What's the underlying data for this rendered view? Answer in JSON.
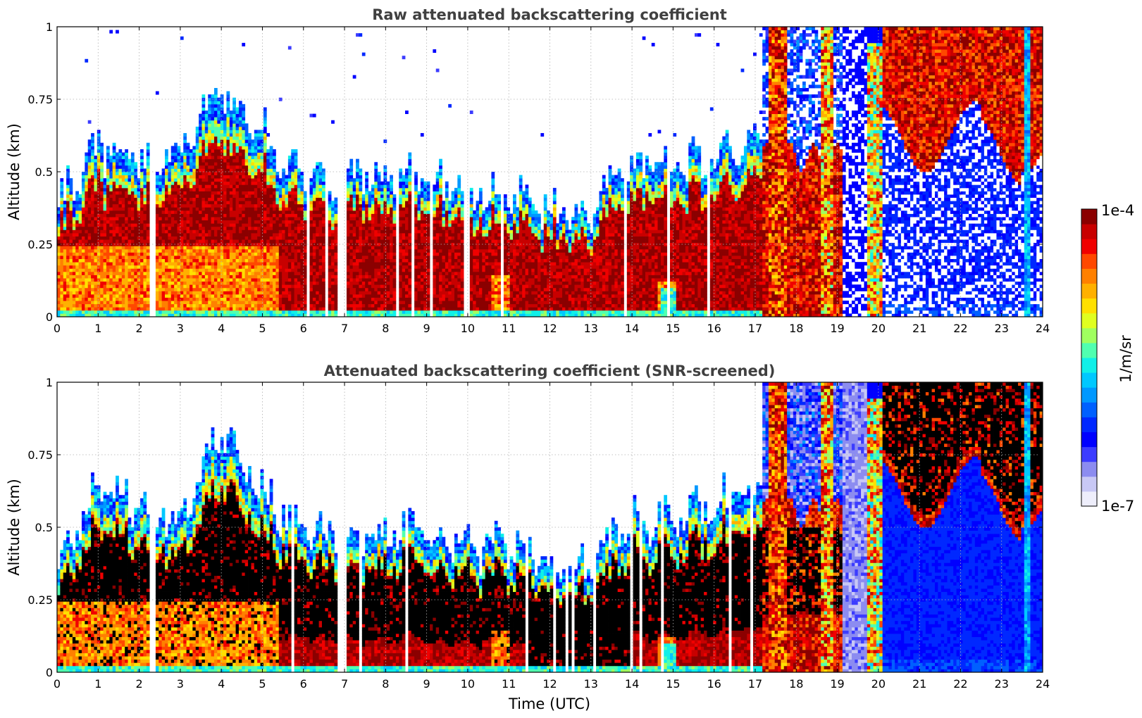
{
  "chart_data": [
    {
      "type": "heatmap",
      "title": "Raw attenuated backscattering coefficient",
      "xlabel": "",
      "ylabel": "Altitude (km)",
      "xlim": [
        0,
        24
      ],
      "ylim": [
        0,
        1
      ],
      "x_ticks": [
        "0",
        "1",
        "2",
        "3",
        "4",
        "5",
        "6",
        "7",
        "8",
        "9",
        "10",
        "11",
        "12",
        "13",
        "14",
        "15",
        "16",
        "17",
        "18",
        "19",
        "20",
        "21",
        "22",
        "23",
        "24"
      ],
      "y_ticks": [
        "0",
        "0.25",
        "0.5",
        "0.75",
        "1"
      ],
      "grid": true,
      "screened": false,
      "data_gaps_utc": [
        [
          2.25,
          2.4
        ],
        [
          6.85,
          7.05
        ]
      ],
      "regime_notes": "Dense low aerosol layer below ~0.3-0.5 km from 0-17 UTC; clouds/precip 17-20 UTC; clear sky above with high-level clouds 20-24 UTC",
      "layer_top_km": {
        "hours": [
          0,
          1,
          2,
          3,
          4,
          5,
          6,
          7,
          8,
          9,
          10,
          11,
          12,
          13,
          14,
          15,
          16,
          17
        ],
        "values": [
          0.35,
          0.55,
          0.5,
          0.55,
          0.75,
          0.6,
          0.45,
          0.45,
          0.45,
          0.45,
          0.4,
          0.4,
          0.33,
          0.35,
          0.5,
          0.5,
          0.5,
          0.6
        ]
      }
    },
    {
      "type": "heatmap",
      "title": "Attenuated backscattering coefficient (SNR-screened)",
      "xlabel": "Time (UTC)",
      "ylabel": "Altitude (km)",
      "xlim": [
        0,
        24
      ],
      "ylim": [
        0,
        1
      ],
      "x_ticks": [
        "0",
        "1",
        "2",
        "3",
        "4",
        "5",
        "6",
        "7",
        "8",
        "9",
        "10",
        "11",
        "12",
        "13",
        "14",
        "15",
        "16",
        "17",
        "18",
        "19",
        "20",
        "21",
        "22",
        "23",
        "24"
      ],
      "y_ticks": [
        "0",
        "0.25",
        "0.5",
        "0.75",
        "1"
      ],
      "grid": true,
      "screened": true,
      "data_gaps_utc": [
        [
          2.25,
          2.4
        ],
        [
          6.85,
          7.05
        ]
      ],
      "layer_top_km": {
        "hours": [
          0,
          1,
          2,
          3,
          4,
          5,
          6,
          7,
          8,
          9,
          10,
          11,
          12,
          13,
          14,
          15,
          16,
          17
        ],
        "values": [
          0.35,
          0.6,
          0.55,
          0.5,
          0.8,
          0.6,
          0.45,
          0.45,
          0.45,
          0.45,
          0.4,
          0.42,
          0.33,
          0.33,
          0.5,
          0.5,
          0.55,
          0.6
        ]
      }
    }
  ],
  "colorbar": {
    "label": "1/m/sr",
    "max_label": "1e-4",
    "min_label": "1e-7",
    "colors": [
      "#eeeefb",
      "#c8c8f5",
      "#8c8cf0",
      "#3c3cff",
      "#0000ff",
      "#0028ff",
      "#0060ff",
      "#0098ff",
      "#00c8ff",
      "#10f0e8",
      "#50ffb0",
      "#a0ff60",
      "#e0ff20",
      "#ffe000",
      "#ffb000",
      "#ff8000",
      "#ff4800",
      "#f00000",
      "#c80000",
      "#8b0000"
    ]
  }
}
